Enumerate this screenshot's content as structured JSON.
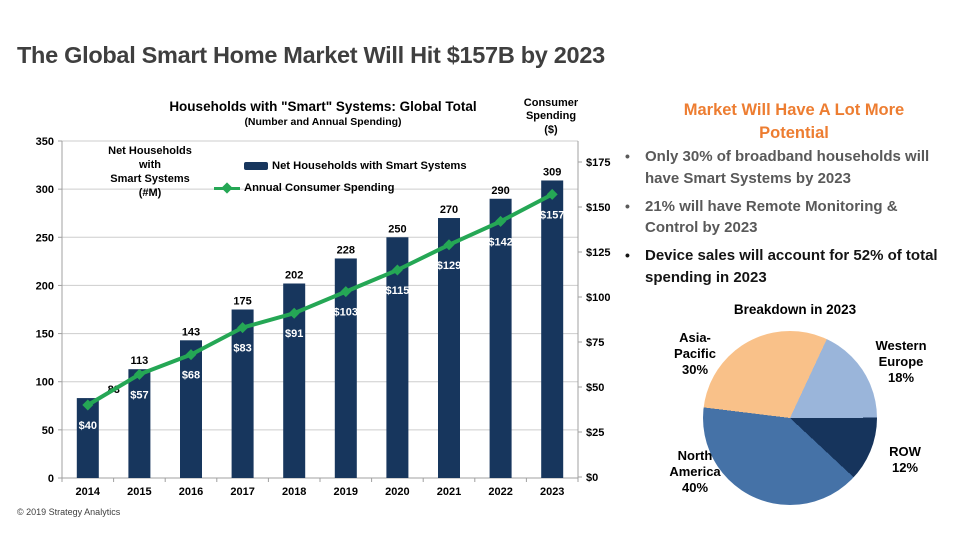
{
  "slide": {
    "title": "The Global Smart Home Market Will Hit $157B by 2023",
    "footer": "© 2019 Strategy Analytics"
  },
  "chart_data": [
    {
      "type": "bar",
      "title": "Households with \"Smart\" Systems: Global Total",
      "subtitle": "(Number and Annual Spending)",
      "categories": [
        "2014",
        "2015",
        "2016",
        "2017",
        "2018",
        "2019",
        "2020",
        "2021",
        "2022",
        "2023"
      ],
      "series": [
        {
          "name": "Net Households with Smart Systems",
          "type": "bar",
          "axis": "left",
          "color": "#17365D",
          "values": [
            83,
            113,
            143,
            175,
            202,
            228,
            250,
            270,
            290,
            309
          ],
          "labels": [
            "83",
            "113",
            "143",
            "175",
            "202",
            "228",
            "250",
            "270",
            "290",
            "309"
          ]
        },
        {
          "name": "Annual Consumer Spending",
          "type": "line",
          "axis": "right",
          "color": "#25A755",
          "values": [
            40,
            57,
            68,
            83,
            91,
            103,
            115,
            129,
            142,
            157
          ],
          "labels": [
            "$40",
            "$57",
            "$68",
            "$83",
            "$91",
            "$103",
            "$115",
            "$129",
            "$142",
            "$157"
          ]
        }
      ],
      "left_axis": {
        "title": "Net Households\nwith\nSmart Systems\n(#M)",
        "min": 0,
        "max": 350,
        "tick_values": [
          350,
          300,
          250,
          200,
          150,
          100,
          50,
          0
        ],
        "tick_labels": [
          "350",
          "300",
          "250",
          "200",
          "150",
          "100",
          "50",
          "0"
        ]
      },
      "right_axis": {
        "title": "Consumer\nSpending\n($)",
        "min": 0,
        "max": 175,
        "tick_values": [
          175,
          150,
          125,
          100,
          75,
          50,
          25,
          0
        ],
        "tick_labels": [
          "$175",
          "$150",
          "$125",
          "$100",
          "$75",
          "$50",
          "$25",
          "$0"
        ]
      },
      "legend": [
        "Net Households with Smart Systems",
        "Annual Consumer Spending"
      ],
      "grid": true,
      "legend_position": "top-inside"
    },
    {
      "type": "pie",
      "title": "Breakdown in 2023",
      "start_angle_deg": 25,
      "slices": [
        {
          "label": "Western Europe",
          "pct": 18,
          "color": "#9AB5DA",
          "callout": "Western\nEurope\n18%"
        },
        {
          "label": "ROW",
          "pct": 12,
          "color": "#16345C",
          "callout": "ROW\n12%"
        },
        {
          "label": "North America",
          "pct": 40,
          "color": "#4572A7",
          "callout": "North\nAmerica\n40%"
        },
        {
          "label": "Asia-Pacific",
          "pct": 30,
          "color": "#F9C189",
          "callout": "Asia-\nPacific\n30%"
        }
      ]
    }
  ],
  "right_panel": {
    "heading": "Market Will Have A Lot More\nPotential",
    "bullets": [
      {
        "text": "Only 30% of broadband households will have Smart Systems by 2023",
        "emphasis": false
      },
      {
        "text": "21% will have Remote Monitoring & Control by 2023",
        "emphasis": false
      },
      {
        "text": "Device sales will account for 52% of total spending in 2023",
        "emphasis": true
      }
    ]
  },
  "colors": {
    "bar": "#17365D",
    "line": "#25A755",
    "heading_orange": "#ED7D31",
    "pie_asia_pacific": "#F9C189",
    "pie_western_europe": "#9AB5DA",
    "pie_row": "#16345C",
    "pie_north_america": "#4572A7"
  }
}
